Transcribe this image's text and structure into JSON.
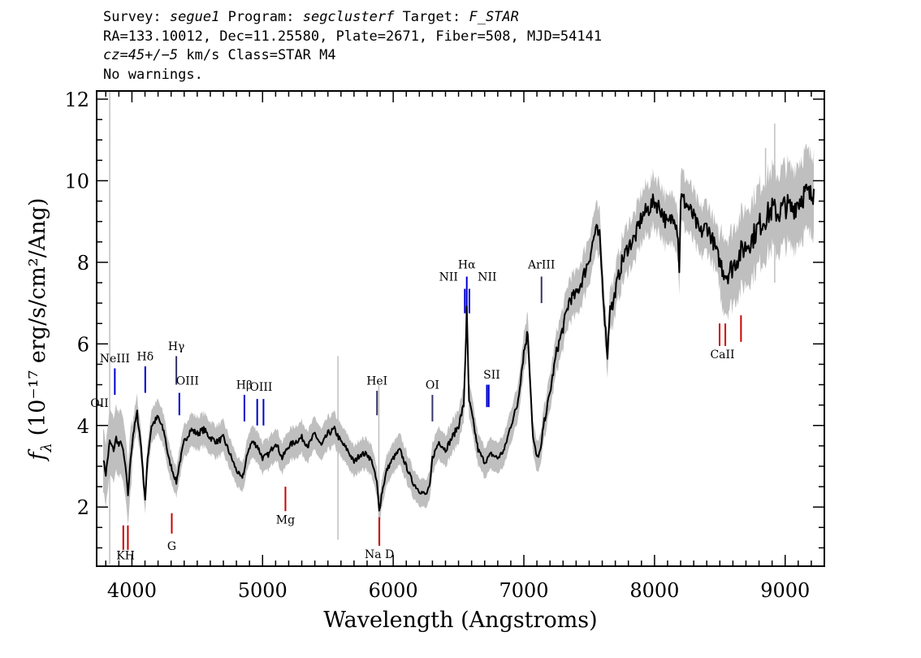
{
  "header": {
    "line1": {
      "survey_label": "Survey:",
      "survey": "segue1",
      "program_label": "Program:",
      "program": "segclusterf",
      "target_label": "Target:",
      "target": "F_STAR"
    },
    "line2": "RA=133.10012, Dec=11.25580, Plate=2671, Fiber=508, MJD=54141",
    "line3": {
      "cz": "cz=45+/−5",
      "rest": " km/s Class=STAR M4"
    },
    "line4": "No warnings."
  },
  "colors": {
    "flux": "#000000",
    "error": "#bfbfbf",
    "emission": "#0000cc",
    "absorption": "#cc0000",
    "sky": "#bfbfbf"
  },
  "chart_data": {
    "type": "line",
    "xlabel": "Wavelength (Angstroms)",
    "ylabel": "f",
    "ylabel_sub": "λ",
    "ylabel_units": " (10⁻¹⁷ erg/s/cm²/Ang)",
    "xlim": [
      3730,
      9300
    ],
    "ylim": [
      0.55,
      12.2
    ],
    "x_ticks": [
      4000,
      5000,
      6000,
      7000,
      8000,
      9000
    ],
    "y_ticks": [
      2,
      4,
      6,
      8,
      10,
      12
    ],
    "series": [
      {
        "x": [
          3780,
          3800,
          3830,
          3860,
          3880,
          3900,
          3920,
          3950,
          3970,
          3990,
          4010,
          4040,
          4070,
          4090,
          4102,
          4120,
          4150,
          4200,
          4250,
          4280,
          4300,
          4320,
          4340,
          4360,
          4400,
          4450,
          4500,
          4550,
          4600,
          4650,
          4700,
          4750,
          4800,
          4840,
          4861,
          4890,
          4920,
          4960,
          5000,
          5050,
          5100,
          5150,
          5200,
          5250,
          5300,
          5350,
          5400,
          5450,
          5500,
          5550,
          5600,
          5650,
          5700,
          5750,
          5800,
          5840,
          5860,
          5875,
          5893,
          5910,
          5950,
          6000,
          6050,
          6100,
          6150,
          6200,
          6250,
          6280,
          6300,
          6350,
          6400,
          6450,
          6500,
          6540,
          6563,
          6580,
          6600,
          6650,
          6700,
          6750,
          6800,
          6850,
          6900,
          6950,
          7000,
          7030,
          7050,
          7070,
          7100,
          7130,
          7150,
          7200,
          7250,
          7300,
          7350,
          7400,
          7450,
          7500,
          7550,
          7580,
          7600,
          7620,
          7640,
          7660,
          7680,
          7700,
          7750,
          7800,
          7850,
          7900,
          7950,
          8000,
          8050,
          8100,
          8150,
          8180,
          8190,
          8200,
          8250,
          8300,
          8350,
          8400,
          8450,
          8500,
          8550,
          8600,
          8650,
          8700,
          8750,
          8800,
          8850,
          8900,
          8950,
          9000,
          9050,
          9100,
          9150,
          9200,
          9220
        ],
        "y": [
          3.2,
          2.8,
          3.6,
          3.4,
          3.7,
          3.5,
          3.6,
          3.0,
          2.3,
          3.2,
          3.8,
          4.3,
          3.5,
          2.6,
          2.2,
          3.2,
          4.0,
          4.2,
          3.8,
          3.2,
          3.0,
          2.8,
          2.6,
          3.0,
          3.6,
          3.9,
          3.8,
          3.9,
          3.7,
          3.6,
          3.7,
          3.3,
          2.9,
          2.7,
          2.9,
          3.4,
          3.6,
          3.5,
          3.2,
          3.3,
          3.6,
          3.2,
          3.5,
          3.6,
          3.7,
          3.5,
          3.8,
          3.5,
          3.8,
          3.9,
          3.6,
          3.4,
          3.1,
          3.3,
          3.3,
          3.1,
          2.8,
          2.6,
          1.9,
          2.3,
          2.9,
          3.2,
          3.4,
          3.0,
          2.6,
          2.4,
          2.3,
          2.5,
          3.2,
          3.6,
          3.4,
          3.7,
          4.0,
          4.5,
          6.8,
          4.6,
          4.3,
          3.4,
          3.1,
          3.3,
          3.2,
          3.4,
          4.0,
          4.5,
          5.8,
          6.3,
          5.0,
          3.7,
          3.2,
          3.4,
          4.0,
          4.8,
          5.8,
          6.4,
          7.1,
          7.2,
          7.6,
          8.1,
          8.8,
          8.6,
          7.6,
          6.6,
          5.7,
          7.0,
          6.9,
          7.3,
          8.0,
          8.4,
          8.6,
          9.1,
          9.3,
          9.5,
          9.3,
          8.9,
          9.2,
          8.7,
          7.7,
          9.6,
          9.4,
          9.1,
          8.7,
          8.9,
          8.5,
          8.0,
          7.7,
          7.9,
          8.2,
          8.4,
          8.6,
          8.9,
          9.1,
          9.3,
          9.2,
          9.4,
          9.3,
          9.5,
          9.7,
          9.6,
          9.8
        ]
      }
    ],
    "emission_lines": [
      {
        "label": "OII",
        "x": 3727
      },
      {
        "label": "NeIII",
        "x": 3869
      },
      {
        "label": "Hδ",
        "x": 4102
      },
      {
        "label": "Hγ",
        "x": 4340
      },
      {
        "label": "OIII",
        "x": 4363
      },
      {
        "label": "Hβ",
        "x": 4861
      },
      {
        "label": "OIII",
        "x": 4959
      },
      {
        "label": "OIII",
        "x": 5007
      },
      {
        "label": "HeI",
        "x": 5876
      },
      {
        "label": "OI",
        "x": 6300
      },
      {
        "label": "NII",
        "x": 6548
      },
      {
        "label": "Hα",
        "x": 6563
      },
      {
        "label": "NII",
        "x": 6583
      },
      {
        "label": "SII",
        "x": 6717
      },
      {
        "label": "SII",
        "x": 6731
      },
      {
        "label": "ArIII",
        "x": 7135
      }
    ],
    "absorption_lines": [
      {
        "label": "K",
        "x": 3934
      },
      {
        "label": "H",
        "x": 3969
      },
      {
        "label": "G",
        "x": 4305
      },
      {
        "label": "Mg",
        "x": 5175
      },
      {
        "label": "Na D",
        "x": 5894
      },
      {
        "label": "CaII",
        "x": 8498
      },
      {
        "label": "CaII",
        "x": 8542
      },
      {
        "label": "CaII",
        "x": 8662
      }
    ]
  }
}
